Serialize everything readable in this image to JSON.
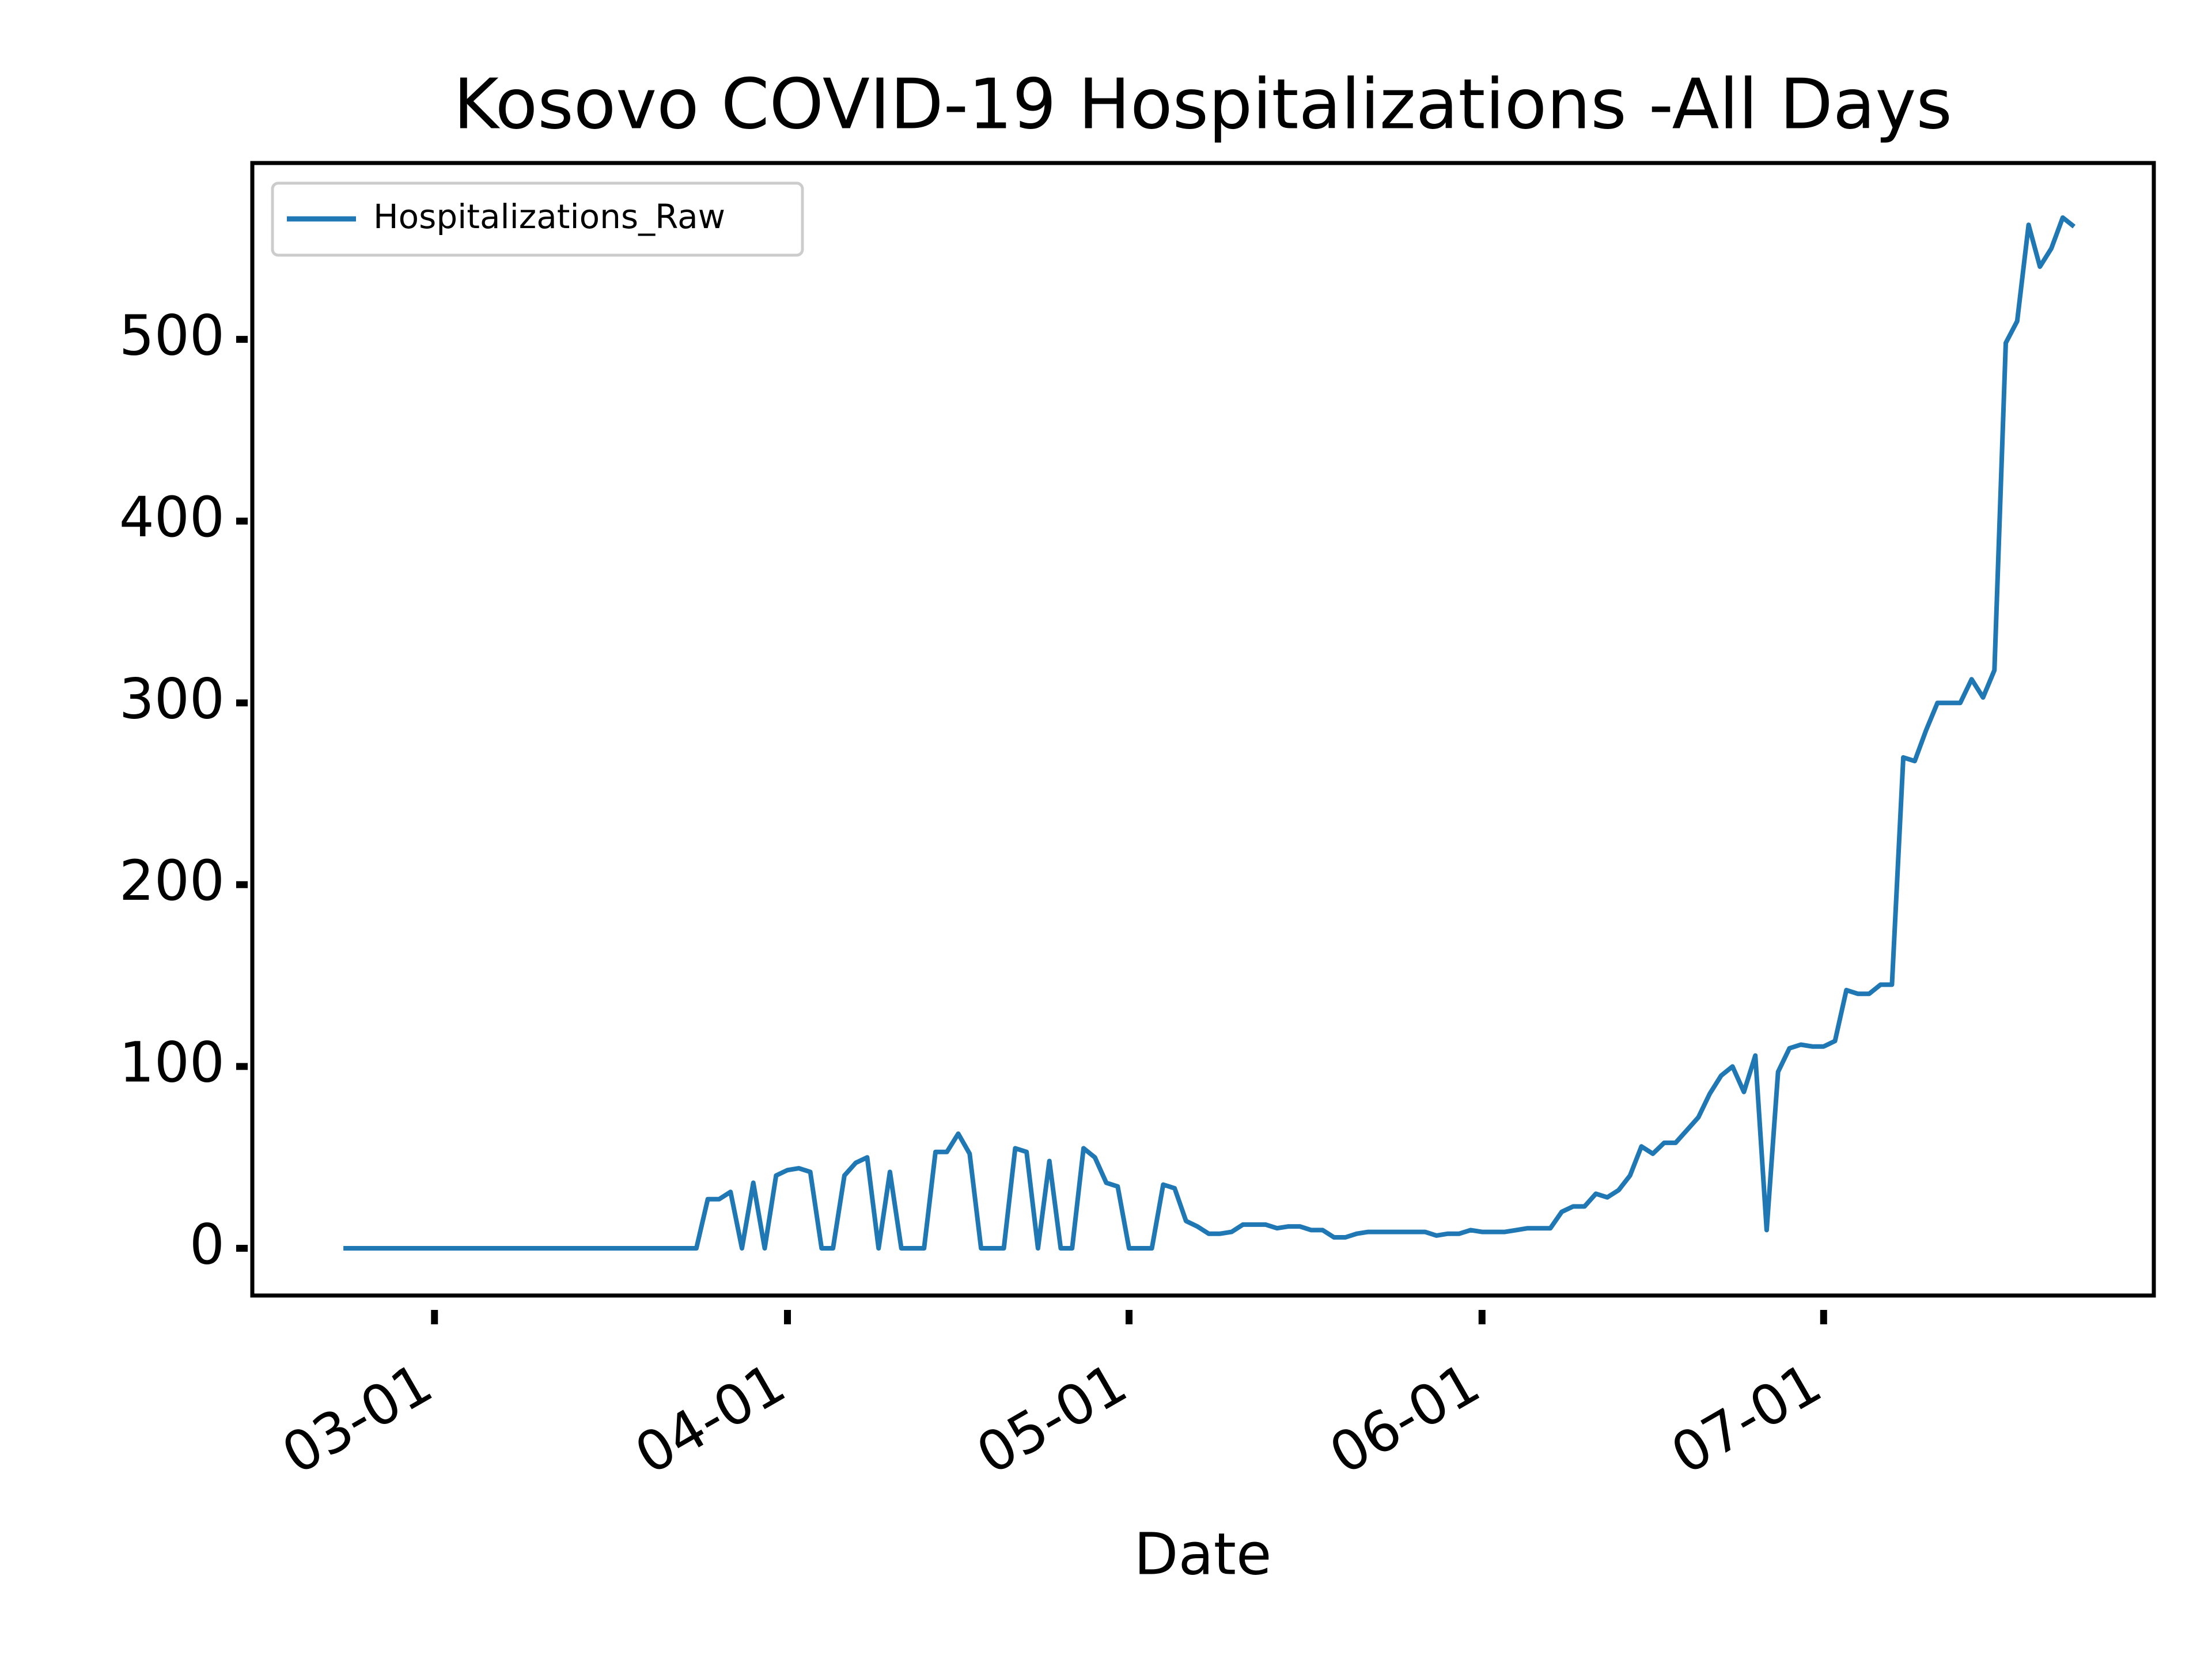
{
  "chart_data": {
    "type": "line",
    "title": "Kosovo COVID-19 Hospitalizations -All Days",
    "xlabel": "Date",
    "x": [
      "02-22",
      "02-23",
      "02-24",
      "02-25",
      "02-26",
      "02-27",
      "02-28",
      "02-29",
      "03-01",
      "03-02",
      "03-03",
      "03-04",
      "03-05",
      "03-06",
      "03-07",
      "03-08",
      "03-09",
      "03-10",
      "03-11",
      "03-12",
      "03-13",
      "03-14",
      "03-15",
      "03-16",
      "03-17",
      "03-18",
      "03-19",
      "03-20",
      "03-21",
      "03-22",
      "03-23",
      "03-24",
      "03-25",
      "03-26",
      "03-27",
      "03-28",
      "03-29",
      "03-30",
      "03-31",
      "04-01",
      "04-02",
      "04-03",
      "04-04",
      "04-05",
      "04-06",
      "04-07",
      "04-08",
      "04-09",
      "04-10",
      "04-11",
      "04-12",
      "04-13",
      "04-14",
      "04-15",
      "04-16",
      "04-17",
      "04-18",
      "04-19",
      "04-20",
      "04-21",
      "04-22",
      "04-23",
      "04-24",
      "04-25",
      "04-26",
      "04-27",
      "04-28",
      "04-29",
      "04-30",
      "05-01",
      "05-02",
      "05-03",
      "05-04",
      "05-05",
      "05-06",
      "05-07",
      "05-08",
      "05-09",
      "05-10",
      "05-11",
      "05-12",
      "05-13",
      "05-14",
      "05-15",
      "05-16",
      "05-17",
      "05-18",
      "05-19",
      "05-20",
      "05-21",
      "05-22",
      "05-23",
      "05-24",
      "05-25",
      "05-26",
      "05-27",
      "05-28",
      "05-29",
      "05-30",
      "05-31",
      "06-01",
      "06-02",
      "06-03",
      "06-04",
      "06-05",
      "06-06",
      "06-07",
      "06-08",
      "06-09",
      "06-10",
      "06-11",
      "06-12",
      "06-13",
      "06-14",
      "06-15",
      "06-16",
      "06-17",
      "06-18",
      "06-19",
      "06-20",
      "06-21",
      "06-22",
      "06-23",
      "06-24",
      "06-25",
      "06-26",
      "06-27",
      "06-28",
      "06-29",
      "06-30",
      "07-01",
      "07-02",
      "07-03",
      "07-04",
      "07-05",
      "07-06",
      "07-07",
      "07-08",
      "07-09",
      "07-10",
      "07-11",
      "07-12",
      "07-13",
      "07-14",
      "07-15",
      "07-16",
      "07-17",
      "07-18",
      "07-19",
      "07-20",
      "07-21",
      "07-22",
      "07-23"
    ],
    "series": [
      {
        "name": "Hospitalizations_Raw",
        "color": "#1f77b4",
        "values": [
          0,
          0,
          0,
          0,
          0,
          0,
          0,
          0,
          0,
          0,
          0,
          0,
          0,
          0,
          0,
          0,
          0,
          0,
          0,
          0,
          0,
          0,
          0,
          0,
          0,
          0,
          0,
          0,
          0,
          0,
          0,
          0,
          27,
          27,
          31,
          0,
          36,
          0,
          40,
          43,
          44,
          42,
          0,
          0,
          40,
          47,
          50,
          0,
          42,
          0,
          0,
          0,
          53,
          53,
          63,
          52,
          0,
          0,
          0,
          55,
          53,
          0,
          48,
          0,
          0,
          55,
          50,
          36,
          34,
          0,
          0,
          0,
          35,
          33,
          15,
          12,
          8,
          8,
          9,
          13,
          13,
          13,
          11,
          12,
          12,
          10,
          10,
          6,
          6,
          8,
          9,
          9,
          9,
          9,
          9,
          9,
          7,
          8,
          8,
          10,
          9,
          9,
          9,
          10,
          11,
          11,
          11,
          20,
          23,
          23,
          30,
          28,
          32,
          40,
          56,
          52,
          58,
          58,
          65,
          72,
          85,
          95,
          100,
          86,
          106,
          10,
          97,
          110,
          112,
          111,
          111,
          114,
          142,
          140,
          140,
          145,
          145,
          270,
          268,
          285,
          300,
          300,
          300,
          313,
          303,
          318,
          498,
          510,
          563,
          540,
          550,
          567,
          562
        ]
      }
    ],
    "xlim": [
      "02-14",
      "07-30"
    ],
    "xticks": [
      "03-01",
      "04-01",
      "05-01",
      "06-01",
      "07-01"
    ],
    "ylim": [
      -26,
      597
    ],
    "yticks": [
      0,
      100,
      200,
      300,
      400,
      500
    ],
    "legend": "upper left",
    "grid": false
  }
}
